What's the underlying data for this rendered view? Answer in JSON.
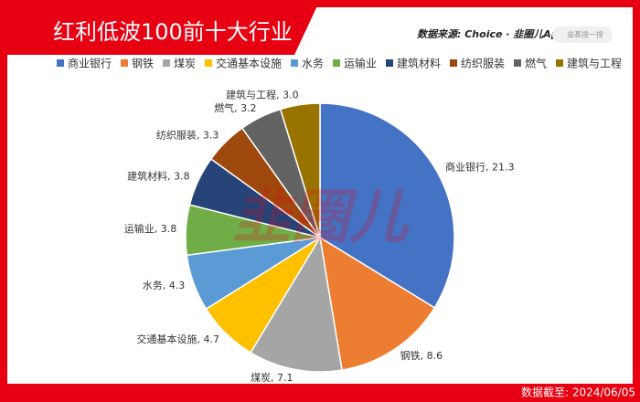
{
  "chart_data": {
    "type": "pie",
    "title": "红利低波100前十大行业",
    "source": "数据来源: Choice · 韭圈儿App",
    "search_placeholder": "韭基搜一搜",
    "watermark": "韭圈儿",
    "date_note": "数据截至: 2024/06/05",
    "categories": [
      "商业银行",
      "钢铁",
      "煤炭",
      "交通基本设施",
      "水务",
      "运输业",
      "建筑材料",
      "纺织服装",
      "燃气",
      "建筑与工程"
    ],
    "values": [
      21.3,
      8.6,
      7.1,
      4.7,
      4.3,
      3.8,
      3.8,
      3.3,
      3.2,
      3.0
    ],
    "value_labels": [
      "21.3",
      "8.6",
      "7.1",
      "4.7",
      "4.3",
      "3.8",
      "3.8",
      "3.3",
      "3.2",
      "3.0"
    ],
    "colors": [
      "#4472c4",
      "#ed7d31",
      "#a5a5a5",
      "#ffc000",
      "#5b9bd5",
      "#70ad47",
      "#264478",
      "#9e480e",
      "#636363",
      "#997300"
    ],
    "legend": "top"
  }
}
